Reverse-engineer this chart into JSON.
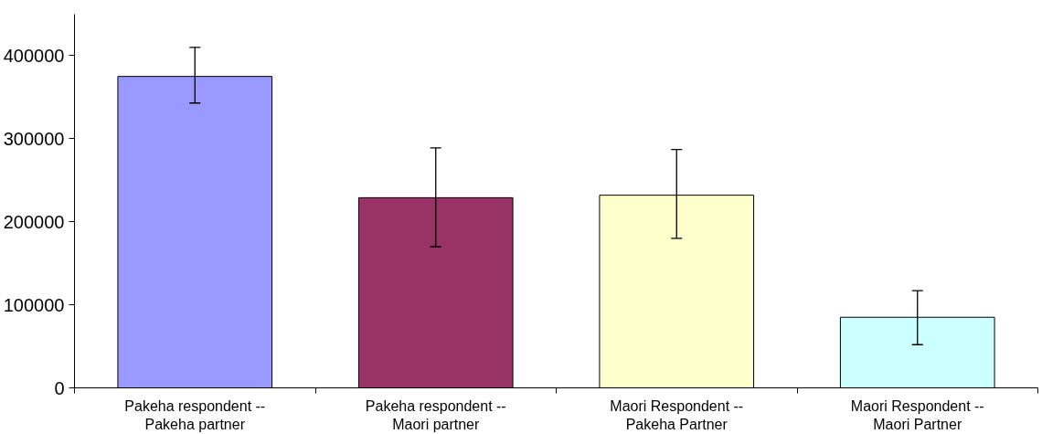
{
  "chart_data": {
    "type": "bar",
    "categories": [
      "Pakeha respondent --\nPakeha partner",
      "Pakeha respondent --\nMaori partner",
      "Maori Respondent --\nPakeha Partner",
      "Maori Respondent --\nMaori Partner"
    ],
    "values": [
      375000,
      229000,
      232000,
      85000
    ],
    "colors": [
      "#9999ff",
      "#993366",
      "#ffffcc",
      "#ccffff"
    ],
    "errors": [
      [
        343000,
        410000
      ],
      [
        170000,
        289000
      ],
      [
        180000,
        287000
      ],
      [
        52000,
        117000
      ]
    ],
    "ylim": [
      0,
      450000
    ],
    "yticks": [
      0,
      100000,
      200000,
      300000,
      400000
    ],
    "grid": false
  }
}
